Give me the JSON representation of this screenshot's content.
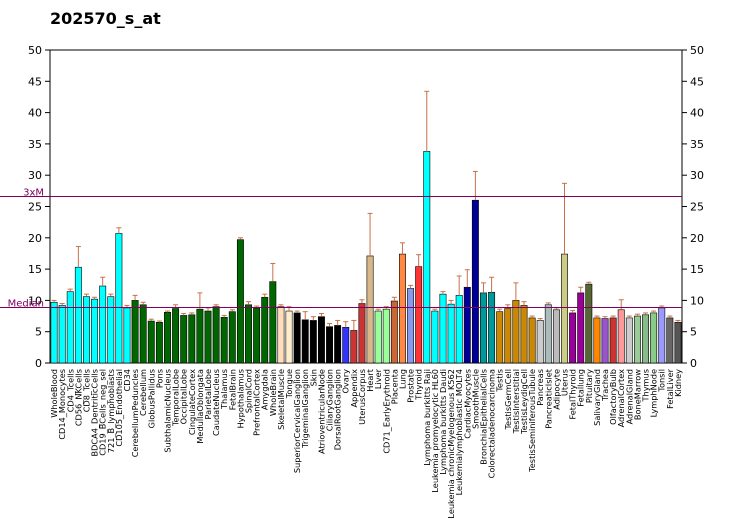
{
  "chart_data": {
    "type": "bar",
    "title": "202570_s_at",
    "xlabel": "",
    "ylabel": "",
    "ylim": [
      0,
      50
    ],
    "yticks": [
      0,
      5,
      10,
      15,
      20,
      25,
      30,
      35,
      40,
      45,
      50
    ],
    "grid": false,
    "reference_lines": [
      {
        "label": "3xM",
        "value": 26.6,
        "color": "#800060"
      },
      {
        "label": "Median",
        "value": 8.87,
        "color": "#800060"
      }
    ],
    "categories": [
      "WholeBlood",
      "CD14_Monocytes",
      "CD4_Tcells",
      "CD56_NKCells",
      "CD8_Tcells",
      "BDCA4_DentriticCells",
      "CD19_BCells_neg_sel",
      "721_B_lymphoblasts",
      "CD105_Endothelial",
      "CD34",
      "CerebellumPeduncles",
      "Cerebellum",
      "GlobusPallidus",
      "Pons",
      "SubthalamicNucleus",
      "TemporalLobe",
      "OccipitalLobe",
      "CingulateCortex",
      "MedullaOblongata",
      "ParietalLobe",
      "CaudateNucleus",
      "Thalamus",
      "FetalBrain",
      "Hypothalamus",
      "SpinalCord",
      "PrefrontalCortex",
      "Amygdala",
      "WholeBrain",
      "SkeletalMuscle",
      "Tongue",
      "SuperiorCervicalGanglion",
      "TrigeminalGanglion",
      "Skin",
      "AtrioventricularNode",
      "CiliaryGanglion",
      "DorsalRootGanglion",
      "Ovary",
      "Appendix",
      "UterusCorpus",
      "Heart",
      "Liver",
      "CD71_EarlyErythroid",
      "Placenta",
      "Lung",
      "Prostate",
      "Thyroid",
      "Lymphoma burkitts Raji",
      "Leukemia promyelocytic HL60",
      "Lymphoma burkitts Daudi",
      "Leukemia chronicMyelogenous K562",
      "Leukemialymphoblastic MOLT4",
      "CardiacMyocytes",
      "SmoothMuscle",
      "BronchialEpithelialCells",
      "Colorectaladenocarcinoma",
      "Testis",
      "TestisGermCell",
      "TestisInterstitial",
      "TestisLeydigCell",
      "TestisSeminiferousTubule",
      "Pancreas",
      "PancreaticIslet",
      "Adipocyte",
      "Uterus",
      "FetalThyroid",
      "Fetallung",
      "Pituitary",
      "SalivaryGland",
      "Trachea",
      "OlfactoryBulb",
      "AdrenalCortex",
      "AdrenalGland",
      "BoneMarrow",
      "Thymus",
      "LymphNode",
      "Tonsil",
      "FetalLiver",
      "Kidney"
    ],
    "series": [
      {
        "name": "202570_s_at",
        "values": [
          9.7,
          9.2,
          11.4,
          15.3,
          10.6,
          10.2,
          12.3,
          10.6,
          20.7,
          8.8,
          10.0,
          9.3,
          6.7,
          6.5,
          8.1,
          8.7,
          7.6,
          7.7,
          8.6,
          8.3,
          9.0,
          7.3,
          8.2,
          19.7,
          9.3,
          8.8,
          10.5,
          13.0,
          9.0,
          8.3,
          8.0,
          6.9,
          6.8,
          7.4,
          5.8,
          6.0,
          5.7,
          5.2,
          9.5,
          17.1,
          8.3,
          8.6,
          9.9,
          17.4,
          11.9,
          15.4,
          33.8,
          8.3,
          11.0,
          9.4,
          10.8,
          12.1,
          26.0,
          11.2,
          11.3,
          8.2,
          8.7,
          10.0,
          9.2,
          7.2,
          6.8,
          9.3,
          8.5,
          17.4,
          8.0,
          11.2,
          12.6,
          7.2,
          7.1,
          7.2,
          8.5,
          7.2,
          7.5,
          7.7,
          8.0,
          8.8,
          7.2,
          6.5
        ],
        "error": [
          0.3,
          0.3,
          0.4,
          3.3,
          0.4,
          0.3,
          1.4,
          0.4,
          0.9,
          0.4,
          0.8,
          0.4,
          0.3,
          0.2,
          0.2,
          0.6,
          0.3,
          0.3,
          2.6,
          0.5,
          0.3,
          0.3,
          0.3,
          0.3,
          0.5,
          0.3,
          0.5,
          2.9,
          0.3,
          0.7,
          0.3,
          1.3,
          0.6,
          0.5,
          0.5,
          0.8,
          0.9,
          1.6,
          0.6,
          6.8,
          0.3,
          0.4,
          0.6,
          1.8,
          0.5,
          1.9,
          9.6,
          0.3,
          0.4,
          0.6,
          3.1,
          2.8,
          4.6,
          1.6,
          2.4,
          0.4,
          0.6,
          2.8,
          0.6,
          0.3,
          0.3,
          0.3,
          0.3,
          11.3,
          0.4,
          0.9,
          0.3,
          0.3,
          0.3,
          0.3,
          1.6,
          0.3,
          0.3,
          0.3,
          0.3,
          0.3,
          0.3,
          0.3
        ]
      }
    ],
    "colors": [
      "#00ffff",
      "#00ffff",
      "#00ffff",
      "#00ffff",
      "#00ffff",
      "#00ffff",
      "#00ffff",
      "#00ffff",
      "#00ffff",
      "#00ffff",
      "#006600",
      "#006600",
      "#006600",
      "#006600",
      "#006600",
      "#006600",
      "#006600",
      "#006600",
      "#006600",
      "#006600",
      "#006600",
      "#006600",
      "#006600",
      "#006600",
      "#006600",
      "#006600",
      "#006600",
      "#006600",
      "#ffddbb",
      "#ffeecc",
      "#000000",
      "#000000",
      "#000000",
      "#000000",
      "#000000",
      "#000000",
      "#3333ff",
      "#cc3333",
      "#cc3333",
      "#d8b888",
      "#99ff99",
      "#99ff99",
      "#cc6633",
      "#ff8844",
      "#8899ee",
      "#ff3333",
      "#00ffff",
      "#00ffff",
      "#00ffff",
      "#00ffff",
      "#00ffff",
      "#000099",
      "#000099",
      "#009999",
      "#009999",
      "#cc8800",
      "#cc8800",
      "#cc8800",
      "#cc8800",
      "#cc8800",
      "#cccccc",
      "#aabbbb",
      "#bbbbbb",
      "#cccc88",
      "#990099",
      "#990099",
      "#556633",
      "#ff8800",
      "#9955cc",
      "#cc3333",
      "#ff9999",
      "#cccccc",
      "#99cc99",
      "#88bb88",
      "#88cc88",
      "#9999ff",
      "#666666",
      "#555555"
    ]
  }
}
